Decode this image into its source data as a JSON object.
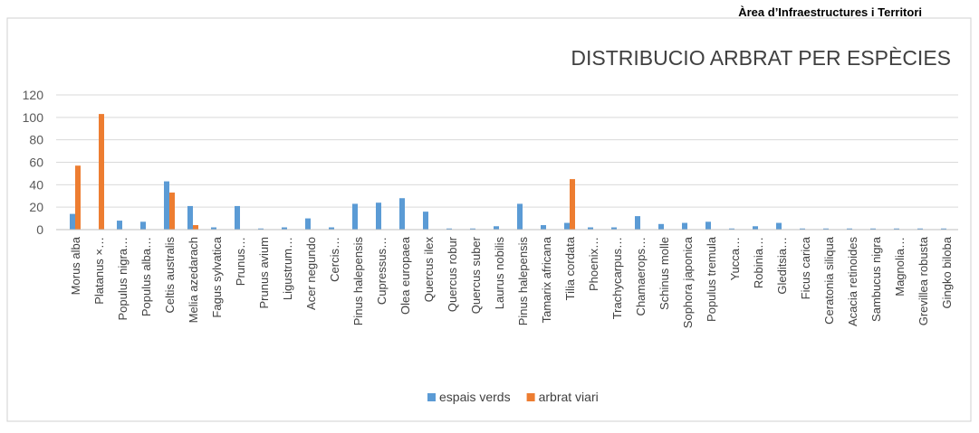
{
  "header": "Àrea d’Infraestructures i Territori",
  "chart_data": {
    "type": "bar",
    "title": "DISTRIBUCIO ARBRAT PER ESPÈCIES",
    "categories": [
      "Morus alba",
      "Platanus ×…",
      "Populus nigra…",
      "Populus alba…",
      "Celtis australis",
      "Melia azedarach",
      "Fagus sylvatica",
      "Prunus…",
      "Prunus avium",
      "Ligustrum…",
      "Acer negundo",
      "Cercis…",
      "Pinus halepensis",
      "Cupressus…",
      "Olea europaea",
      "Quercus ilex",
      "Quercus robur",
      "Quercus suber",
      "Laurus nobilis",
      "Pinus halepensis",
      "Tamarix africana",
      "Tilia cordata",
      "Phoenix…",
      "Trachycarpus…",
      "Chamaerops…",
      "Schinus molle",
      "Sophora japonica",
      "Populus tremula",
      "Yucca…",
      "Robinia…",
      "Gleditsia…",
      "Ficus carica",
      "Ceratonia siliqua",
      "Acacia retinoides",
      "Sambucus nigra",
      "Magnolia…",
      "Grevillea robusta",
      "Gingko biloba"
    ],
    "series": [
      {
        "name": "espais verds",
        "color": "#5b9bd5",
        "values": [
          14,
          0,
          8,
          7,
          43,
          21,
          2,
          21,
          1,
          2,
          10,
          2,
          23,
          24,
          28,
          16,
          1,
          1,
          3,
          23,
          4,
          6,
          2,
          2,
          12,
          5,
          6,
          7,
          1,
          3,
          6,
          1,
          1,
          1,
          1,
          1,
          1,
          1
        ]
      },
      {
        "name": "arbrat viari",
        "color": "#ed7d31",
        "values": [
          57,
          103,
          0,
          0,
          33,
          4,
          0,
          0,
          0,
          0,
          0,
          0,
          0,
          0,
          0,
          0,
          0,
          0,
          0,
          0,
          0,
          45,
          0,
          0,
          0,
          0,
          0,
          0,
          0,
          0,
          0,
          0,
          0,
          0,
          0,
          0,
          0,
          0
        ]
      }
    ],
    "ylim": [
      0,
      120
    ],
    "yticks": [
      0,
      20,
      40,
      60,
      80,
      100,
      120
    ],
    "grid": true,
    "legend": "bottom"
  }
}
